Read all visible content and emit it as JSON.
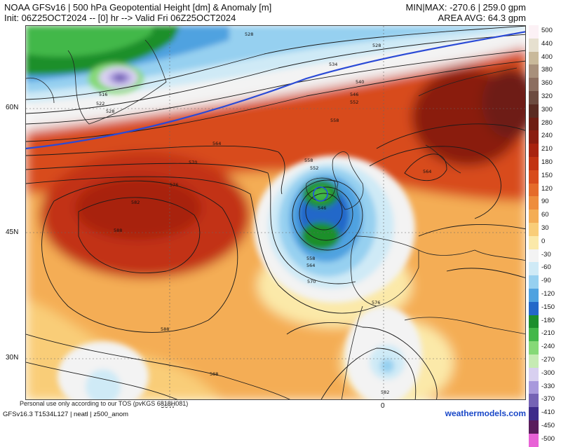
{
  "header": {
    "title_line1": "NOAA GFSv16 | 500 hPa Geopotential Height [dm] & Anomaly [m]",
    "title_line2": "Init: 06Z25OCT2024 -- [0] hr --> Valid Fri 06Z25OCT2024",
    "minmax": "MIN|MAX: -270.6 | 259.0 gpm",
    "area_avg": "AREA AVG: 64.3 gpm"
  },
  "map": {
    "lat_labels": [
      "60N",
      "45N",
      "30N"
    ],
    "lon_labels": [
      "30W",
      "0"
    ],
    "contour_labels": [
      "516",
      "522",
      "528",
      "528",
      "528",
      "534",
      "540",
      "546",
      "552",
      "558",
      "564",
      "570",
      "576",
      "582",
      "588",
      "558",
      "552",
      "546",
      "558",
      "564",
      "570",
      "576",
      "564",
      "588",
      "588",
      "582"
    ]
  },
  "colorbar": {
    "ticks": [
      "500",
      "440",
      "400",
      "380",
      "360",
      "320",
      "300",
      "280",
      "240",
      "210",
      "180",
      "150",
      "120",
      "90",
      "60",
      "30",
      "0",
      "-30",
      "-60",
      "-90",
      "-120",
      "-150",
      "-180",
      "-210",
      "-240",
      "-270",
      "-300",
      "-330",
      "-370",
      "-410",
      "-450",
      "-500"
    ],
    "colors": [
      "#fcf1f5",
      "#e6e0cf",
      "#c9b99a",
      "#a8907b",
      "#8c6e5f",
      "#6d4b3f",
      "#5a2b21",
      "#6e1d12",
      "#8a1d10",
      "#a8230f",
      "#c23312",
      "#d84c1c",
      "#e56b2a",
      "#ee8d3d",
      "#f4ad55",
      "#f9cd78",
      "#fbe9a9",
      "#f3f3f3",
      "#cfeaf6",
      "#96d0f0",
      "#4fa2e0",
      "#2468c9",
      "#1c8f2c",
      "#43b84a",
      "#86d977",
      "#c6ebb4",
      "#d8d0f0",
      "#a899dc",
      "#7563b5",
      "#3e2b8a",
      "#5a1d5c",
      "#9a2a86"
    ],
    "extra_bottom": "#e862d6"
  },
  "footer": {
    "disclaimer": "Personal use only according to our TOS (pvKGS 6818H081)",
    "model_info": "GFSv16.3 T1534L127 | neatl | z500_anom",
    "brand": "weathermodels.com"
  }
}
